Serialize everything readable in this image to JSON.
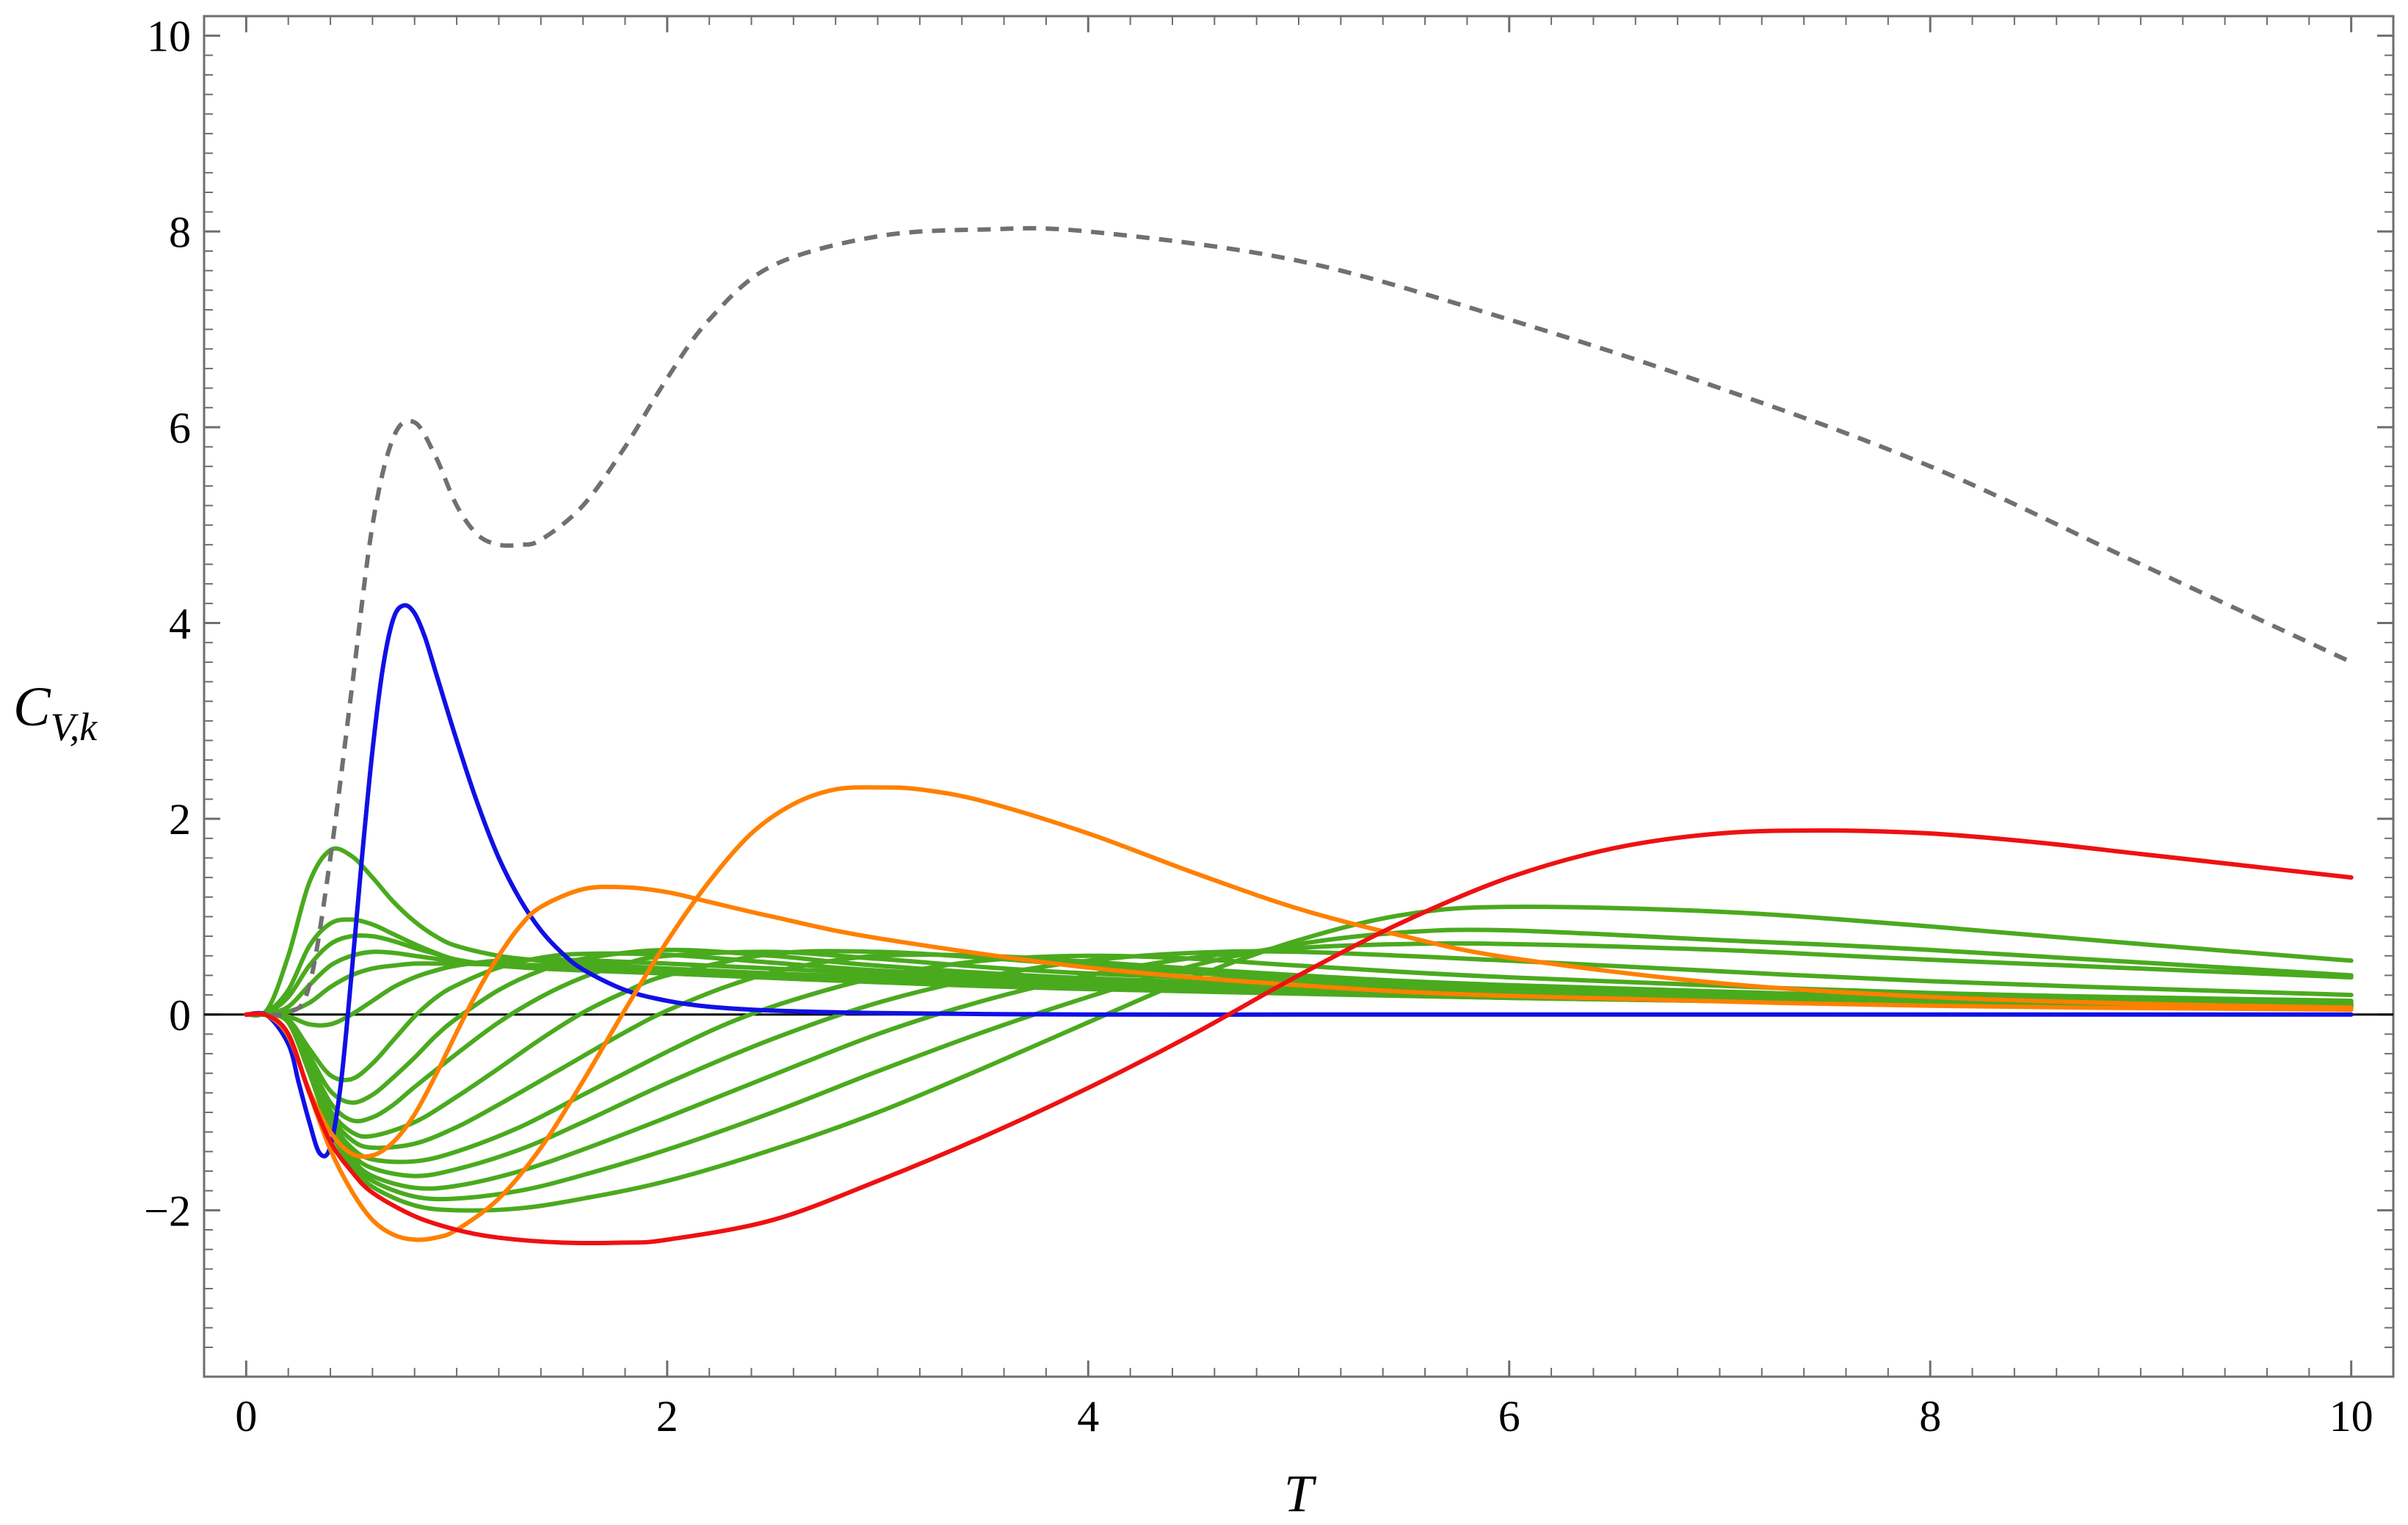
{
  "chart_data": {
    "type": "line",
    "title": "",
    "xlabel": "T",
    "ylabel": {
      "base": "C",
      "sub": "V,k"
    },
    "xlim": [
      -0.2,
      10.2
    ],
    "ylim": [
      -3.7,
      10.2
    ],
    "xticks": [
      0,
      2,
      4,
      6,
      8,
      10
    ],
    "xtick_labels": [
      "0",
      "2",
      "4",
      "6",
      "8",
      "10"
    ],
    "yticks": [
      -2,
      0,
      2,
      4,
      6,
      8,
      10
    ],
    "ytick_labels": [
      "−2",
      "0",
      "2",
      "4",
      "6",
      "8",
      "10"
    ],
    "grid": false,
    "legend": "none",
    "colors": {
      "total": "#707070",
      "blue": "#1010e6",
      "orange": "#ff8000",
      "red": "#ee1111",
      "green": "#4aaa1e",
      "zero_line": "#000000",
      "frame": "#6e6e6e"
    },
    "series": [
      {
        "color_key": "total",
        "dashed": true,
        "x": [
          0,
          0.2,
          0.3,
          0.4,
          0.5,
          0.6,
          0.7,
          0.8,
          0.9,
          1.0,
          1.1,
          1.2,
          1.3,
          1.4,
          1.6,
          1.8,
          2.0,
          2.2,
          2.5,
          3.0,
          3.5,
          4.0,
          5.0,
          6.0,
          7.0,
          8.0,
          9.0,
          10.0
        ],
        "y": [
          0,
          0.02,
          0.3,
          1.6,
          3.3,
          5.0,
          5.9,
          6.05,
          5.7,
          5.2,
          4.9,
          4.8,
          4.8,
          4.85,
          5.2,
          5.8,
          6.5,
          7.1,
          7.65,
          7.95,
          8.02,
          8.0,
          7.7,
          7.1,
          6.4,
          5.6,
          4.6,
          3.6
        ]
      },
      {
        "color_key": "green",
        "x": [
          0,
          0.1,
          0.2,
          0.3,
          0.4,
          0.5,
          0.6,
          0.7,
          0.8,
          0.9,
          1.0,
          1.2,
          1.4,
          1.6,
          2.0,
          3.0,
          4.0,
          6.0,
          8.0,
          10.0
        ],
        "y": [
          0,
          0.05,
          0.6,
          1.35,
          1.68,
          1.62,
          1.4,
          1.15,
          0.95,
          0.8,
          0.7,
          0.6,
          0.55,
          0.52,
          0.47,
          0.37,
          0.29,
          0.19,
          0.12,
          0.08
        ]
      },
      {
        "color_key": "green",
        "x": [
          0,
          0.1,
          0.2,
          0.3,
          0.4,
          0.5,
          0.6,
          0.7,
          0.8,
          0.9,
          1.0,
          1.2,
          1.5,
          2.0,
          3.0,
          4.0,
          6.0,
          8.0,
          10.0
        ],
        "y": [
          0,
          0.03,
          0.25,
          0.7,
          0.93,
          0.97,
          0.92,
          0.82,
          0.72,
          0.63,
          0.56,
          0.5,
          0.46,
          0.42,
          0.33,
          0.26,
          0.17,
          0.11,
          0.07
        ]
      },
      {
        "color_key": "green",
        "x": [
          0,
          0.1,
          0.2,
          0.3,
          0.4,
          0.5,
          0.6,
          0.7,
          0.8,
          0.9,
          1.0,
          1.2,
          1.5,
          2.0,
          3.0,
          4.0,
          6.0,
          8.0,
          10.0
        ],
        "y": [
          0,
          0.02,
          0.18,
          0.5,
          0.72,
          0.8,
          0.8,
          0.75,
          0.68,
          0.62,
          0.56,
          0.5,
          0.46,
          0.42,
          0.34,
          0.27,
          0.17,
          0.11,
          0.07
        ]
      },
      {
        "color_key": "green",
        "x": [
          0,
          0.1,
          0.2,
          0.3,
          0.4,
          0.5,
          0.6,
          0.7,
          0.8,
          0.9,
          1.0,
          1.2,
          1.5,
          2.0,
          3.0,
          4.0,
          6.0,
          8.0,
          10.0
        ],
        "y": [
          0,
          0.01,
          0.08,
          0.3,
          0.5,
          0.6,
          0.64,
          0.63,
          0.6,
          0.57,
          0.54,
          0.51,
          0.48,
          0.44,
          0.36,
          0.28,
          0.18,
          0.11,
          0.07
        ]
      },
      {
        "color_key": "green",
        "x": [
          0,
          0.1,
          0.2,
          0.3,
          0.4,
          0.5,
          0.6,
          0.7,
          0.8,
          0.9,
          1.0,
          1.2,
          1.5,
          2.0,
          3.0,
          4.0,
          6.0,
          8.0,
          10.0
        ],
        "y": [
          0,
          0.0,
          0.03,
          0.12,
          0.28,
          0.4,
          0.47,
          0.5,
          0.52,
          0.52,
          0.52,
          0.51,
          0.5,
          0.46,
          0.38,
          0.3,
          0.19,
          0.12,
          0.08
        ]
      },
      {
        "color_key": "green",
        "x": [
          0,
          0.1,
          0.2,
          0.3,
          0.4,
          0.5,
          0.6,
          0.7,
          0.8,
          0.9,
          1.0,
          1.2,
          1.5,
          2.0,
          3.0,
          4.0,
          6.0,
          8.0,
          10.0
        ],
        "y": [
          0,
          0.0,
          -0.02,
          -0.1,
          -0.1,
          0.0,
          0.14,
          0.28,
          0.38,
          0.45,
          0.5,
          0.55,
          0.56,
          0.52,
          0.42,
          0.33,
          0.21,
          0.13,
          0.09
        ]
      },
      {
        "color_key": "green",
        "x": [
          0,
          0.1,
          0.2,
          0.3,
          0.4,
          0.5,
          0.6,
          0.7,
          0.8,
          0.9,
          1.0,
          1.2,
          1.4,
          1.6,
          2.0,
          2.5,
          3.0,
          4.0,
          6.0,
          8.0,
          10.0
        ],
        "y": [
          0,
          0.0,
          -0.05,
          -0.35,
          -0.62,
          -0.66,
          -0.5,
          -0.26,
          -0.02,
          0.17,
          0.3,
          0.48,
          0.58,
          0.62,
          0.61,
          0.53,
          0.45,
          0.34,
          0.21,
          0.13,
          0.09
        ]
      },
      {
        "color_key": "green",
        "x": [
          0,
          0.1,
          0.2,
          0.3,
          0.4,
          0.5,
          0.6,
          0.7,
          0.8,
          0.9,
          1.0,
          1.2,
          1.4,
          1.6,
          2.0,
          2.5,
          3.0,
          4.0,
          6.0,
          8.0,
          10.0
        ],
        "y": [
          0,
          0.0,
          -0.06,
          -0.42,
          -0.78,
          -0.9,
          -0.82,
          -0.64,
          -0.44,
          -0.22,
          -0.04,
          0.25,
          0.45,
          0.57,
          0.66,
          0.6,
          0.5,
          0.37,
          0.22,
          0.14,
          0.09
        ]
      },
      {
        "color_key": "green",
        "x": [
          0,
          0.1,
          0.2,
          0.3,
          0.4,
          0.5,
          0.6,
          0.7,
          0.8,
          1.0,
          1.2,
          1.4,
          1.6,
          1.8,
          2.0,
          2.5,
          3.0,
          4.0,
          6.0,
          8.0,
          10.0
        ],
        "y": [
          0,
          0.0,
          -0.07,
          -0.48,
          -0.9,
          -1.08,
          -1.05,
          -0.92,
          -0.74,
          -0.4,
          -0.08,
          0.18,
          0.38,
          0.52,
          0.6,
          0.64,
          0.57,
          0.42,
          0.25,
          0.15,
          0.1
        ]
      },
      {
        "color_key": "green",
        "x": [
          0,
          0.1,
          0.2,
          0.3,
          0.4,
          0.5,
          0.6,
          0.8,
          1.0,
          1.2,
          1.4,
          1.6,
          1.8,
          2.0,
          2.5,
          3.0,
          3.5,
          4.0,
          5.0,
          6.0,
          8.0,
          10.0
        ],
        "y": [
          0,
          0.0,
          -0.08,
          -0.52,
          -0.98,
          -1.2,
          -1.24,
          -1.1,
          -0.84,
          -0.55,
          -0.25,
          0.02,
          0.23,
          0.4,
          0.62,
          0.64,
          0.58,
          0.5,
          0.36,
          0.27,
          0.16,
          0.11
        ]
      },
      {
        "color_key": "green",
        "x": [
          0,
          0.1,
          0.2,
          0.3,
          0.4,
          0.5,
          0.6,
          0.8,
          1.0,
          1.2,
          1.5,
          1.8,
          2.0,
          2.3,
          2.6,
          3.0,
          3.5,
          4.0,
          5.0,
          6.0,
          8.0,
          10.0
        ],
        "y": [
          0,
          0.0,
          -0.08,
          -0.55,
          -1.03,
          -1.28,
          -1.36,
          -1.32,
          -1.15,
          -0.92,
          -0.55,
          -0.18,
          0.04,
          0.3,
          0.48,
          0.6,
          0.6,
          0.54,
          0.4,
          0.3,
          0.18,
          0.12
        ]
      },
      {
        "color_key": "green",
        "x": [
          0,
          0.1,
          0.2,
          0.3,
          0.4,
          0.5,
          0.6,
          0.8,
          1.0,
          1.3,
          1.6,
          2.0,
          2.3,
          2.6,
          3.0,
          3.5,
          4.0,
          4.5,
          5.0,
          6.0,
          8.0,
          10.0
        ],
        "y": [
          0,
          0.0,
          -0.08,
          -0.57,
          -1.08,
          -1.36,
          -1.48,
          -1.5,
          -1.4,
          -1.15,
          -0.82,
          -0.38,
          -0.08,
          0.15,
          0.38,
          0.55,
          0.6,
          0.57,
          0.5,
          0.38,
          0.22,
          0.14
        ]
      },
      {
        "color_key": "green",
        "x": [
          0,
          0.1,
          0.2,
          0.3,
          0.4,
          0.5,
          0.6,
          0.8,
          1.0,
          1.3,
          1.6,
          2.0,
          2.5,
          3.0,
          3.5,
          4.0,
          4.5,
          5.0,
          6.0,
          8.0,
          10.0
        ],
        "y": [
          0,
          0.0,
          -0.08,
          -0.58,
          -1.12,
          -1.42,
          -1.57,
          -1.65,
          -1.58,
          -1.38,
          -1.1,
          -0.7,
          -0.25,
          0.12,
          0.38,
          0.55,
          0.63,
          0.64,
          0.55,
          0.34,
          0.2
        ]
      },
      {
        "color_key": "green",
        "x": [
          0,
          0.1,
          0.2,
          0.3,
          0.4,
          0.5,
          0.6,
          0.8,
          1.0,
          1.3,
          1.6,
          2.0,
          2.5,
          3.0,
          3.5,
          4.0,
          4.5,
          5.0,
          5.5,
          6.0,
          7.0,
          8.0,
          10.0
        ],
        "y": [
          0,
          0.0,
          -0.08,
          -0.59,
          -1.15,
          -1.47,
          -1.65,
          -1.77,
          -1.75,
          -1.6,
          -1.38,
          -1.05,
          -0.62,
          -0.2,
          0.14,
          0.4,
          0.58,
          0.68,
          0.72,
          0.72,
          0.66,
          0.56,
          0.38
        ]
      },
      {
        "color_key": "green",
        "x": [
          0,
          0.1,
          0.2,
          0.3,
          0.4,
          0.5,
          0.6,
          0.8,
          1.0,
          1.3,
          1.6,
          2.0,
          2.5,
          3.0,
          3.5,
          4.0,
          4.5,
          5.0,
          5.5,
          6.0,
          7.0,
          8.0,
          10.0
        ],
        "y": [
          0,
          0.0,
          -0.08,
          -0.59,
          -1.17,
          -1.5,
          -1.7,
          -1.86,
          -1.88,
          -1.8,
          -1.64,
          -1.38,
          -1.0,
          -0.58,
          -0.18,
          0.18,
          0.5,
          0.72,
          0.84,
          0.86,
          0.76,
          0.66,
          0.4
        ]
      },
      {
        "color_key": "green",
        "x": [
          0,
          0.1,
          0.2,
          0.3,
          0.4,
          0.5,
          0.6,
          0.8,
          1.0,
          1.3,
          1.6,
          2.0,
          2.5,
          3.0,
          3.5,
          4.0,
          4.5,
          5.0,
          5.5,
          6.0,
          7.0,
          8.0,
          9.0,
          10.0
        ],
        "y": [
          0,
          0.0,
          -0.08,
          -0.6,
          -1.19,
          -1.54,
          -1.76,
          -1.95,
          -2.0,
          -1.98,
          -1.88,
          -1.7,
          -1.38,
          -1.0,
          -0.55,
          -0.08,
          0.38,
          0.76,
          1.02,
          1.1,
          1.05,
          0.9,
          0.72,
          0.55
        ]
      },
      {
        "color_key": "blue",
        "x": [
          0,
          0.1,
          0.2,
          0.25,
          0.3,
          0.35,
          0.4,
          0.45,
          0.5,
          0.55,
          0.6,
          0.65,
          0.7,
          0.75,
          0.8,
          0.85,
          0.9,
          1.0,
          1.1,
          1.2,
          1.3,
          1.4,
          1.5,
          1.6,
          1.8,
          2.0,
          2.2,
          2.5,
          3.0,
          3.5,
          4.0,
          5.0,
          6.0,
          10.0
        ],
        "y": [
          0,
          -0.01,
          -0.3,
          -0.7,
          -1.1,
          -1.42,
          -1.35,
          -0.7,
          0.4,
          1.6,
          2.7,
          3.55,
          4.05,
          4.18,
          4.1,
          3.85,
          3.5,
          2.8,
          2.15,
          1.6,
          1.18,
          0.86,
          0.63,
          0.46,
          0.25,
          0.14,
          0.08,
          0.04,
          0.015,
          0.005,
          0.0,
          0.0,
          0.0,
          0.0
        ]
      },
      {
        "color_key": "orange",
        "x": [
          0,
          0.1,
          0.2,
          0.3,
          0.4,
          0.5,
          0.6,
          0.7,
          0.8,
          0.9,
          1.0,
          1.1,
          1.2,
          1.3,
          1.4,
          1.6,
          1.8,
          2.0,
          2.2,
          2.5,
          3.0,
          4.0,
          5.0,
          6.0,
          8.0,
          10.0
        ],
        "y": [
          0,
          -0.01,
          -0.22,
          -0.78,
          -1.2,
          -1.42,
          -1.44,
          -1.3,
          -1.02,
          -0.62,
          -0.18,
          0.24,
          0.6,
          0.9,
          1.1,
          1.28,
          1.3,
          1.25,
          1.15,
          1.0,
          0.78,
          0.48,
          0.3,
          0.19,
          0.09,
          0.05
        ]
      },
      {
        "color_key": "orange",
        "x": [
          0,
          0.1,
          0.2,
          0.3,
          0.4,
          0.5,
          0.6,
          0.7,
          0.8,
          0.9,
          1.0,
          1.2,
          1.4,
          1.6,
          1.8,
          2.0,
          2.2,
          2.4,
          2.6,
          2.8,
          3.0,
          3.2,
          3.5,
          4.0,
          4.5,
          5.0,
          5.5,
          6.0,
          7.0,
          8.0,
          9.0,
          10.0
        ],
        "y": [
          0,
          -0.01,
          -0.2,
          -0.8,
          -1.38,
          -1.8,
          -2.1,
          -2.25,
          -2.3,
          -2.28,
          -2.2,
          -1.88,
          -1.36,
          -0.68,
          0.05,
          0.75,
          1.36,
          1.85,
          2.15,
          2.3,
          2.32,
          2.3,
          2.18,
          1.85,
          1.45,
          1.08,
          0.8,
          0.58,
          0.32,
          0.18,
          0.11,
          0.07
        ]
      },
      {
        "color_key": "red",
        "x": [
          0,
          0.1,
          0.2,
          0.3,
          0.4,
          0.5,
          0.6,
          0.8,
          1.0,
          1.2,
          1.5,
          1.8,
          2.0,
          2.5,
          3.0,
          3.5,
          4.0,
          4.5,
          5.0,
          5.5,
          6.0,
          6.5,
          7.0,
          7.5,
          8.0,
          8.5,
          9.0,
          9.5,
          10.0
        ],
        "y": [
          0,
          -0.01,
          -0.2,
          -0.8,
          -1.3,
          -1.6,
          -1.82,
          -2.06,
          -2.2,
          -2.28,
          -2.33,
          -2.33,
          -2.3,
          -2.1,
          -1.7,
          -1.25,
          -0.75,
          -0.2,
          0.4,
          0.95,
          1.4,
          1.7,
          1.85,
          1.88,
          1.85,
          1.76,
          1.64,
          1.52,
          1.4
        ]
      }
    ]
  }
}
